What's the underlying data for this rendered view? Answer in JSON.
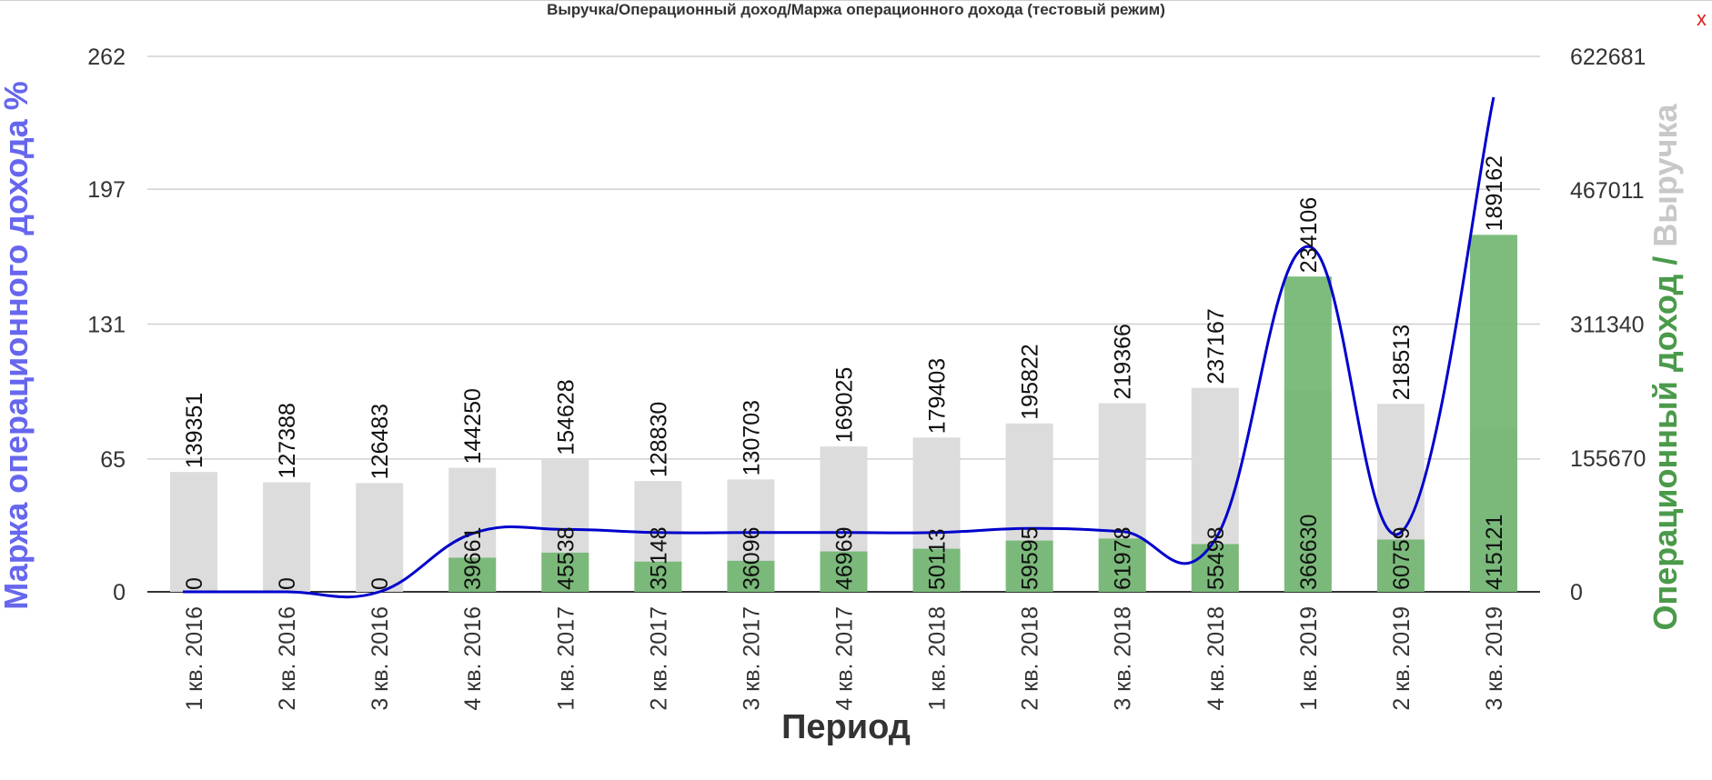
{
  "window": {
    "title": "Выручка/Операционный доход/Маржа операционного дохода (тестовый режим)",
    "close_label": "x"
  },
  "chart_data": {
    "type": "bar",
    "title": "Выручка/Операционный доход/Маржа операционного дохода (тестовый режим)",
    "xlabel": "Период",
    "ylabel_left": "Маржа операционного дохода %",
    "ylabel_right_parts": [
      "Операционный доход",
      " / ",
      "Выручка"
    ],
    "categories": [
      "1 кв. 2016",
      "2 кв. 2016",
      "3 кв. 2016",
      "4 кв. 2016",
      "1 кв. 2017",
      "2 кв. 2017",
      "3 кв. 2017",
      "4 кв. 2017",
      "1 кв. 2018",
      "2 кв. 2018",
      "3 кв. 2018",
      "4 кв. 2018",
      "1 кв. 2019",
      "2 кв. 2019",
      "3 кв. 2019"
    ],
    "left_axis": {
      "ticks": [
        0,
        65,
        131,
        197,
        262
      ],
      "ylim": [
        0,
        262
      ]
    },
    "right_axis": {
      "ticks": [
        0,
        155670,
        311340,
        467011,
        622681
      ],
      "ylim": [
        0,
        622681
      ]
    },
    "series": [
      {
        "name": "Выручка",
        "axis": "right",
        "color": "#dcdcdc",
        "values": [
          139351,
          127388,
          126483,
          144250,
          154628,
          128830,
          130703,
          169025,
          179403,
          195822,
          219366,
          237167,
          234106,
          218513,
          189162
        ]
      },
      {
        "name": "Операционный доход",
        "axis": "right",
        "color": "#6fb56f",
        "values": [
          0,
          0,
          0,
          39661,
          45538,
          35148,
          36096,
          46969,
          50113,
          59595,
          61978,
          55498,
          366630,
          60759,
          415121
        ]
      },
      {
        "name": "Маржа операционного дохода %",
        "axis": "left",
        "type": "line",
        "color": "#0000cc",
        "values": [
          0,
          0,
          0,
          28.5,
          30.5,
          29,
          29,
          29,
          29,
          31,
          29.5,
          25.5,
          169,
          29,
          242
        ]
      }
    ],
    "grid": true,
    "colors": {
      "revenue": "#dcdcdc",
      "op_income": "#6fb56f",
      "margin_line": "#0000cc",
      "left_axis_label": "#6666ee",
      "right_axis_green": "#4a9a4a",
      "right_axis_grey": "#c8c8c8"
    }
  }
}
